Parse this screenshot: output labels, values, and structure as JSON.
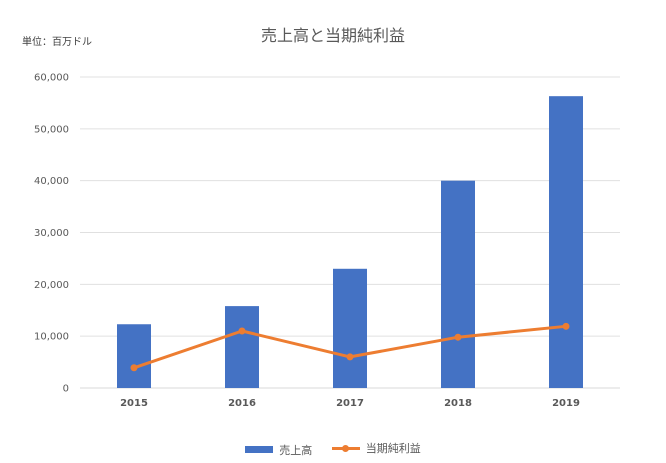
{
  "chart_data": {
    "type": "bar",
    "title": "売上高と当期純利益",
    "unit_label": "単位：百万ドル",
    "categories": [
      "2015",
      "2016",
      "2017",
      "2018",
      "2019"
    ],
    "series": [
      {
        "name": "売上高",
        "type": "bar",
        "color": "#4472C4",
        "values": [
          12300,
          15800,
          23000,
          40000,
          56300
        ]
      },
      {
        "name": "当期純利益",
        "type": "line",
        "color": "#ED7D31",
        "values": [
          3900,
          11000,
          6000,
          9800,
          11900
        ]
      }
    ],
    "ylim": [
      0,
      60000
    ],
    "yticks": [
      "0",
      "10,000",
      "20,000",
      "30,000",
      "40,000",
      "50,000",
      "60,000"
    ],
    "grid": true,
    "legend_position": "bottom"
  }
}
